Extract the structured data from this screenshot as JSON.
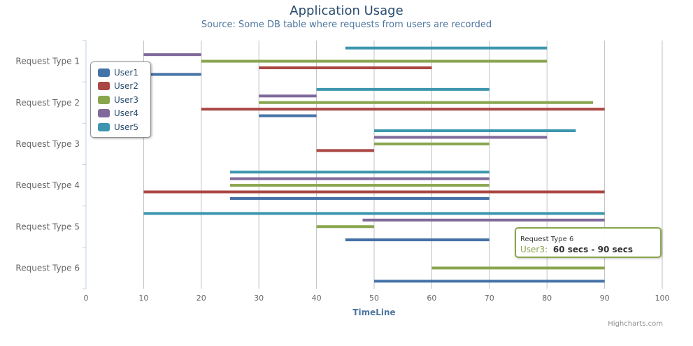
{
  "chart_data": {
    "type": "bar",
    "title": "Application Usage",
    "subtitle": "Source: Some DB table where requests from users are recorded",
    "categories": [
      "Request Type 1",
      "Request Type 2",
      "Request Type 3",
      "Request Type 4",
      "Request Type 5",
      "Request Type 6"
    ],
    "xlabel": "TimeLine",
    "xlim": [
      0,
      100
    ],
    "xticks": [
      0,
      10,
      20,
      30,
      40,
      50,
      60,
      70,
      80,
      90,
      100
    ],
    "grid": true,
    "legend_position": "top-left",
    "series": [
      {
        "name": "User1",
        "color": "#4572A7",
        "values": [
          [
            10,
            20
          ],
          [
            30,
            40
          ],
          null,
          [
            25,
            70
          ],
          [
            45,
            70
          ],
          [
            50,
            90
          ]
        ]
      },
      {
        "name": "User2",
        "color": "#AA4643",
        "values": [
          [
            30,
            60
          ],
          [
            20,
            90
          ],
          [
            40,
            50
          ],
          [
            10,
            90
          ],
          null,
          null
        ]
      },
      {
        "name": "User3",
        "color": "#89A54E",
        "values": [
          [
            20,
            80
          ],
          [
            30,
            88
          ],
          [
            50,
            70
          ],
          [
            25,
            70
          ],
          [
            40,
            50
          ],
          [
            60,
            90
          ]
        ]
      },
      {
        "name": "User4",
        "color": "#80699B",
        "values": [
          [
            10,
            20
          ],
          [
            30,
            40
          ],
          [
            50,
            80
          ],
          [
            25,
            70
          ],
          [
            48,
            90
          ],
          null
        ]
      },
      {
        "name": "User5",
        "color": "#3D96AE",
        "values": [
          [
            45,
            80
          ],
          [
            40,
            70
          ],
          [
            50,
            85
          ],
          [
            25,
            70
          ],
          [
            10,
            90
          ],
          null
        ]
      }
    ]
  },
  "tooltip": {
    "category": "Request Type 6",
    "series": "User3",
    "separator": ":",
    "value": "60 secs  -  90 secs"
  },
  "credits": "Highcharts.com"
}
